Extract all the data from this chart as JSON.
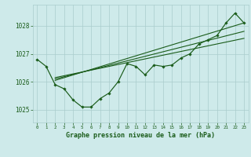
{
  "title": "Graphe pression niveau de la mer (hPa)",
  "background_color": "#ceeaea",
  "grid_color": "#aacccc",
  "line_color": "#1a5c1a",
  "text_color": "#1a5c1a",
  "xlim": [
    -0.5,
    23.5
  ],
  "ylim": [
    1024.55,
    1028.75
  ],
  "yticks": [
    1025,
    1026,
    1027,
    1028
  ],
  "xticks": [
    0,
    1,
    2,
    3,
    4,
    5,
    6,
    7,
    8,
    9,
    10,
    11,
    12,
    13,
    14,
    15,
    16,
    17,
    18,
    19,
    20,
    21,
    22,
    23
  ],
  "hours": [
    0,
    1,
    2,
    3,
    4,
    5,
    6,
    7,
    8,
    9,
    10,
    11,
    12,
    13,
    14,
    15,
    16,
    17,
    18,
    19,
    20,
    21,
    22,
    23
  ],
  "pressure_main": [
    1026.8,
    1026.55,
    1025.9,
    1025.75,
    1025.35,
    1025.1,
    1025.1,
    1025.4,
    1025.6,
    1026.0,
    1026.65,
    1026.55,
    1026.25,
    1026.6,
    1026.55,
    1026.6,
    1026.85,
    1027.0,
    1027.35,
    1027.5,
    1027.65,
    1028.1,
    1028.45,
    1028.1
  ],
  "trend1": [
    2,
    1026.05,
    23,
    1028.1
  ],
  "trend2": [
    2,
    1026.1,
    23,
    1027.8
  ],
  "trend3": [
    2,
    1026.15,
    23,
    1027.55
  ]
}
